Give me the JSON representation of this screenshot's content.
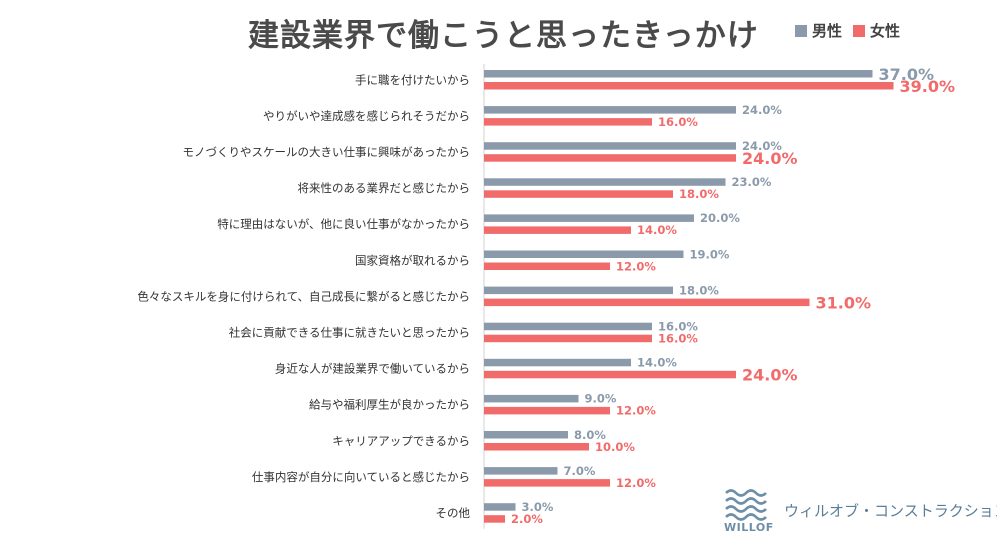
{
  "chart_data": {
    "type": "bar",
    "orientation": "horizontal",
    "title": "建設業界で働こうと思ったきっかけ",
    "categories": [
      "手に職を付けたいから",
      "やりがいや達成感を感じられそうだから",
      "モノづくりやスケールの大きい仕事に興味があったから",
      "将来性のある業界だと感じたから",
      "特に理由はないが、他に良い仕事がなかったから",
      "国家資格が取れるから",
      "色々なスキルを身に付けられて、自己成長に繋がると感じたから",
      "社会に貢献できる仕事に就きたいと思ったから",
      "身近な人が建設業界で働いているから",
      "給与や福利厚生が良かったから",
      "キャリアアップできるから",
      "仕事内容が自分に向いていると感じたから",
      "その他"
    ],
    "series": [
      {
        "name": "男性",
        "color": "#8a9aab",
        "values": [
          37.0,
          24.0,
          24.0,
          23.0,
          20.0,
          19.0,
          18.0,
          16.0,
          14.0,
          9.0,
          8.0,
          7.0,
          3.0
        ],
        "labels": [
          "37.0%",
          "24.0%",
          "24.0%",
          "23.0%",
          "20.0%",
          "19.0%",
          "18.0%",
          "16.0%",
          "14.0%",
          "9.0%",
          "8.0%",
          "7.0%",
          "3.0%"
        ]
      },
      {
        "name": "女性",
        "color": "#f26b6b",
        "values": [
          39.0,
          16.0,
          24.0,
          18.0,
          14.0,
          12.0,
          31.0,
          16.0,
          24.0,
          12.0,
          10.0,
          12.0,
          2.0
        ],
        "labels": [
          "39.0%",
          "16.0%",
          "24.0%",
          "18.0%",
          "14.0%",
          "12.0%",
          "31.0%",
          "16.0%",
          "24.0%",
          "12.0%",
          "10.0%",
          "12.0%",
          "2.0%"
        ]
      }
    ],
    "highlighted_labels": {
      "男性": [
        "37.0%"
      ],
      "女性": [
        "39.0%",
        "31.0%",
        "24.0%"
      ]
    },
    "xlim": [
      0,
      40
    ],
    "grid": false,
    "legend_position": "top-right"
  },
  "legend": {
    "items": [
      {
        "label": "男性",
        "color": "#8a9aab"
      },
      {
        "label": "女性",
        "color": "#f26b6b"
      }
    ]
  },
  "brand": {
    "wordmark": "WILLOF",
    "name": "ウィルオブ・コンストラクション",
    "icon": "wave-logo-icon",
    "color": "#6c8ea6"
  }
}
